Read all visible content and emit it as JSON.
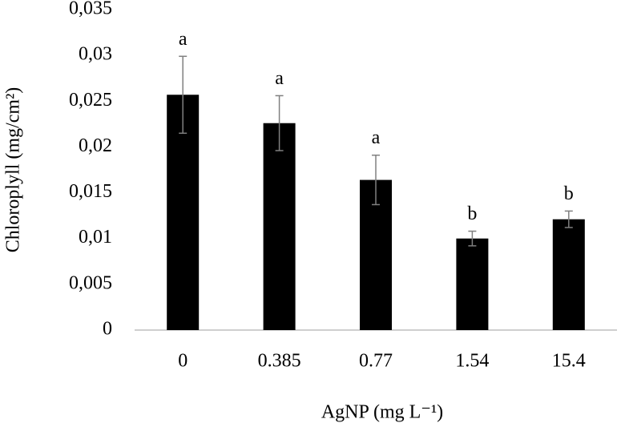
{
  "chart_data": {
    "type": "bar",
    "x_label": "AgNP (mg L⁻¹)",
    "y_label": "Chloroplyll (mg/cm²)",
    "categories": [
      "0",
      "0.385",
      "0.77",
      "1.54",
      "15.4"
    ],
    "values": [
      0.0257,
      0.0226,
      0.0164,
      0.01,
      0.0121
    ],
    "errors": [
      0.0042,
      0.003,
      0.0027,
      0.0008,
      0.0009
    ],
    "annotations": [
      "a",
      "a",
      "a",
      "b",
      "b"
    ],
    "color": "#000000",
    "error_color": "#808080",
    "ylim": [
      0,
      0.035
    ],
    "yticks": [
      0,
      {
        "value": 0.005,
        "label": "0,005"
      },
      {
        "value": 0.01,
        "label": "0,01"
      },
      {
        "value": 0.015,
        "label": "0,015"
      },
      {
        "value": 0.02,
        "label": "0,02"
      },
      {
        "value": 0.025,
        "label": "0,025"
      },
      {
        "value": 0.03,
        "label": "0,03"
      },
      {
        "value": 0.035,
        "label": "0,035"
      }
    ],
    "grid": false
  }
}
